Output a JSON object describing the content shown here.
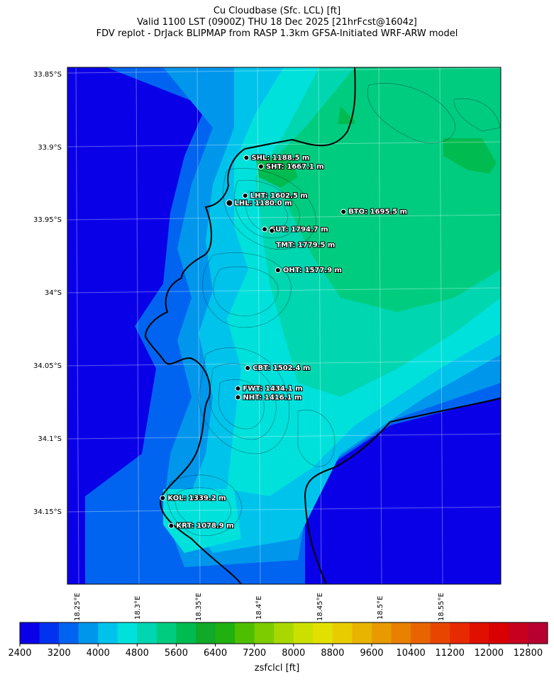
{
  "title": {
    "line1": "Cu Cloudbase (Sfc. LCL) [ft]",
    "line2": "Valid 1100 LST (0900Z) THU 18 Dec 2025 [21hrFcst@1604z]",
    "line3": "FDV replot - DrJack BLIPMAP from RASP 1.3km GFSA-Initiated WRF-ARW model"
  },
  "map": {
    "lat_labels": [
      "33.85°S",
      "33.9°S",
      "33.95°S",
      "34°S",
      "34.05°S",
      "34.1°S",
      "34.15°S"
    ],
    "lon_labels": [
      "18.25°E",
      "18.3°E",
      "18.35°E",
      "18.4°E",
      "18.45°E",
      "18.5°E",
      "18.55°E"
    ],
    "stations": [
      {
        "code": "SHL",
        "label": "SHL: 1188.5 m",
        "lon": 18.39,
        "lat": -33.908
      },
      {
        "code": "SHT",
        "label": "SHT: 1667.1 m",
        "lon": 18.402,
        "lat": -33.914
      },
      {
        "code": "LHT",
        "label": "LHT: 1602.5 m",
        "lon": 18.389,
        "lat": -33.934
      },
      {
        "code": "LHL",
        "label": "LHL: 1180.0 m",
        "lon": 18.376,
        "lat": -33.939
      },
      {
        "code": "BTO",
        "label": "BTO: 1695.5 m",
        "lon": 18.47,
        "lat": -33.945
      },
      {
        "code": "GUT",
        "label": "GUT: 1794.7 m",
        "lon": 18.405,
        "lat": -33.957
      },
      {
        "code": "TMT",
        "label": "TMT: 1779.5 m",
        "lon": 18.411,
        "lat": -33.958
      },
      {
        "code": "OHT",
        "label": "OHT: 1577.9 m",
        "lon": 18.416,
        "lat": -33.985
      },
      {
        "code": "CBT",
        "label": "CBT: 1502.4 m",
        "lon": 18.391,
        "lat": -34.052
      },
      {
        "code": "FWT",
        "label": "FWT: 1434.1 m",
        "lon": 18.383,
        "lat": -34.066
      },
      {
        "code": "NHT",
        "label": "NHT: 1416.1 m",
        "lon": 18.383,
        "lat": -34.072
      },
      {
        "code": "KOL",
        "label": "KOL: 1339.2 m",
        "lon": 18.321,
        "lat": -34.141
      },
      {
        "code": "KRT",
        "label": "KRT: 1078.9 m",
        "lon": 18.328,
        "lat": -34.16
      }
    ]
  },
  "colorbar": {
    "label": "zsfclcl [ft]",
    "ticks": [
      "2400",
      "3200",
      "4000",
      "4800",
      "5600",
      "6400",
      "7200",
      "8000",
      "8800",
      "9600",
      "10400",
      "11200",
      "12000",
      "12800"
    ],
    "min": 2400,
    "max": 13200,
    "step": 400,
    "colors": [
      "#0a00e8",
      "#0032f0",
      "#0064f0",
      "#0096ec",
      "#00c3ec",
      "#00e1dc",
      "#00d6b0",
      "#00cc80",
      "#00bb50",
      "#10aa28",
      "#20b010",
      "#50be00",
      "#7ccc00",
      "#a8d800",
      "#cce000",
      "#e2e000",
      "#e8cc00",
      "#e8b400",
      "#e89a00",
      "#e88000",
      "#e86400",
      "#e84600",
      "#e82a00",
      "#e01000",
      "#d80000",
      "#c80020",
      "#b80030"
    ]
  }
}
